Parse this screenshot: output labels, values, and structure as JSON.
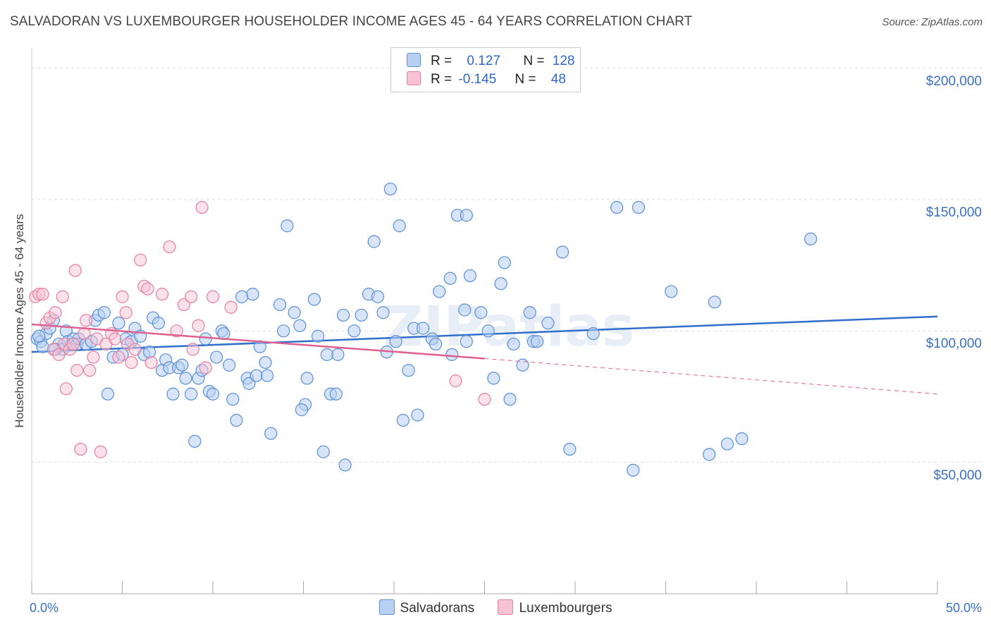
{
  "title": "SALVADORAN VS LUXEMBOURGER HOUSEHOLDER INCOME AGES 45 - 64 YEARS CORRELATION CHART",
  "source": "Source: ZipAtlas.com",
  "watermark": "ZIPatlas",
  "colors": {
    "blue": "#5b8fd6",
    "blue_fill": "#b8d0f2",
    "blue_line": "#2f6fcb",
    "pink": "#e67fa3",
    "pink_fill": "#f7c3d4",
    "pink_line": "#e0608f",
    "axis_text": "#3a6fc4"
  },
  "legend": {
    "rows": [
      {
        "r_label": "R = ",
        "r_value": "0.127",
        "n_label": "N = ",
        "n_value": "128"
      },
      {
        "r_label": "R = ",
        "r_value": "-0.145",
        "n_label": "N = ",
        "n_value": "48"
      }
    ]
  },
  "bottom_legend": [
    "Salvadorans",
    "Luxembourgers"
  ],
  "chart_data": {
    "type": "scatter",
    "title": "SALVADORAN VS LUXEMBOURGER HOUSEHOLDER INCOME AGES 45 - 64 YEARS CORRELATION CHART",
    "xlabel": "",
    "ylabel": "Householder Income Ages 45 - 64 years",
    "xlim": [
      0,
      50
    ],
    "ylim": [
      0,
      205000
    ],
    "x_tick_labels": [
      "0.0%",
      "50.0%"
    ],
    "y_ticks": [
      50000,
      100000,
      150000,
      200000
    ],
    "y_tick_labels": [
      "$50,000",
      "$100,000",
      "$150,000",
      "$200,000"
    ],
    "grid": true,
    "legend_position": "top-center",
    "series": [
      {
        "name": "Salvadorans",
        "color": "#5b8fd6",
        "r": 0.127,
        "n": 128,
        "trend": {
          "x": [
            0,
            50
          ],
          "y": [
            92000,
            105500
          ]
        },
        "points": [
          [
            0.3,
            97000
          ],
          [
            0.5,
            96000
          ],
          [
            0.6,
            94000
          ],
          [
            0.8,
            99000
          ],
          [
            1.0,
            101000
          ],
          [
            1.2,
            104000
          ],
          [
            1.5,
            95000
          ],
          [
            1.7,
            93000
          ],
          [
            1.9,
            100000
          ],
          [
            2.0,
            96000
          ],
          [
            2.2,
            95000
          ],
          [
            2.3,
            97000
          ],
          [
            2.5,
            95000
          ],
          [
            2.6,
            97000
          ],
          [
            3.0,
            95000
          ],
          [
            3.3,
            96000
          ],
          [
            3.5,
            104000
          ],
          [
            3.7,
            106000
          ],
          [
            4.0,
            107000
          ],
          [
            4.2,
            76000
          ],
          [
            4.5,
            90000
          ],
          [
            4.8,
            103000
          ],
          [
            5.0,
            91000
          ],
          [
            5.2,
            97000
          ],
          [
            5.5,
            96000
          ],
          [
            5.7,
            101000
          ],
          [
            6.0,
            98000
          ],
          [
            6.2,
            91000
          ],
          [
            6.5,
            92000
          ],
          [
            6.7,
            105000
          ],
          [
            7.0,
            103000
          ],
          [
            7.2,
            85000
          ],
          [
            7.4,
            89000
          ],
          [
            7.6,
            86000
          ],
          [
            7.8,
            76000
          ],
          [
            8.1,
            86000
          ],
          [
            8.3,
            87000
          ],
          [
            8.5,
            82000
          ],
          [
            8.8,
            76000
          ],
          [
            9.0,
            58000
          ],
          [
            9.2,
            82000
          ],
          [
            9.4,
            85000
          ],
          [
            9.6,
            97000
          ],
          [
            9.8,
            77000
          ],
          [
            10.0,
            76000
          ],
          [
            10.2,
            90000
          ],
          [
            10.5,
            100000
          ],
          [
            10.6,
            99000
          ],
          [
            10.9,
            87000
          ],
          [
            11.1,
            74000
          ],
          [
            11.3,
            66000
          ],
          [
            11.6,
            113000
          ],
          [
            11.9,
            82000
          ],
          [
            12.0,
            80000
          ],
          [
            12.2,
            114000
          ],
          [
            12.4,
            83000
          ],
          [
            12.6,
            94000
          ],
          [
            12.9,
            88000
          ],
          [
            13.0,
            83000
          ],
          [
            13.2,
            61000
          ],
          [
            13.7,
            110000
          ],
          [
            13.9,
            100000
          ],
          [
            14.1,
            140000
          ],
          [
            14.5,
            107000
          ],
          [
            14.8,
            102000
          ],
          [
            15.1,
            72000
          ],
          [
            15.2,
            82000
          ],
          [
            14.9,
            70000
          ],
          [
            15.6,
            112000
          ],
          [
            15.8,
            98000
          ],
          [
            16.1,
            54000
          ],
          [
            16.3,
            91000
          ],
          [
            16.5,
            76000
          ],
          [
            16.8,
            76000
          ],
          [
            16.9,
            91000
          ],
          [
            17.2,
            106000
          ],
          [
            17.3,
            49000
          ],
          [
            17.8,
            100000
          ],
          [
            18.2,
            106000
          ],
          [
            18.6,
            114000
          ],
          [
            18.9,
            134000
          ],
          [
            19.1,
            113000
          ],
          [
            19.4,
            107000
          ],
          [
            19.6,
            92000
          ],
          [
            19.8,
            154000
          ],
          [
            20.1,
            96000
          ],
          [
            20.3,
            140000
          ],
          [
            20.5,
            66000
          ],
          [
            20.8,
            85000
          ],
          [
            21.1,
            101000
          ],
          [
            21.3,
            68000
          ],
          [
            21.6,
            101000
          ],
          [
            22.1,
            97000
          ],
          [
            22.3,
            95000
          ],
          [
            22.5,
            115000
          ],
          [
            23.1,
            120000
          ],
          [
            23.2,
            91000
          ],
          [
            23.5,
            144000
          ],
          [
            23.9,
            108000
          ],
          [
            24.0,
            144000
          ],
          [
            24.2,
            121000
          ],
          [
            24.0,
            96000
          ],
          [
            24.8,
            107000
          ],
          [
            25.2,
            100000
          ],
          [
            25.5,
            82000
          ],
          [
            25.9,
            118000
          ],
          [
            26.1,
            126000
          ],
          [
            26.4,
            74000
          ],
          [
            26.6,
            95000
          ],
          [
            27.1,
            87000
          ],
          [
            27.5,
            107000
          ],
          [
            27.7,
            96000
          ],
          [
            27.9,
            96000
          ],
          [
            28.5,
            103000
          ],
          [
            29.3,
            130000
          ],
          [
            29.7,
            55000
          ],
          [
            31.0,
            99000
          ],
          [
            32.3,
            147000
          ],
          [
            33.2,
            47000
          ],
          [
            33.5,
            147000
          ],
          [
            35.3,
            115000
          ],
          [
            37.4,
            53000
          ],
          [
            37.7,
            111000
          ],
          [
            38.4,
            57000
          ],
          [
            39.2,
            59000
          ],
          [
            43.0,
            135000
          ],
          [
            0.4,
            98000
          ],
          [
            1.3,
            93000
          ]
        ]
      },
      {
        "name": "Luxembourgers",
        "color": "#e67fa3",
        "r": -0.145,
        "n": 48,
        "trend": {
          "x": [
            0,
            25
          ],
          "y": [
            102500,
            89500
          ]
        },
        "trend_extension": {
          "x": [
            25,
            50
          ],
          "y": [
            89500,
            76000
          ]
        },
        "points": [
          [
            0.2,
            113000
          ],
          [
            0.4,
            114000
          ],
          [
            0.6,
            114000
          ],
          [
            0.8,
            103000
          ],
          [
            1.0,
            105000
          ],
          [
            1.2,
            93000
          ],
          [
            1.3,
            107000
          ],
          [
            1.5,
            91000
          ],
          [
            1.7,
            113000
          ],
          [
            1.8,
            95000
          ],
          [
            1.9,
            78000
          ],
          [
            2.1,
            93000
          ],
          [
            2.3,
            95000
          ],
          [
            2.4,
            123000
          ],
          [
            2.5,
            85000
          ],
          [
            2.7,
            55000
          ],
          [
            2.9,
            99000
          ],
          [
            3.0,
            104000
          ],
          [
            3.2,
            85000
          ],
          [
            3.4,
            90000
          ],
          [
            3.6,
            97000
          ],
          [
            3.8,
            54000
          ],
          [
            4.1,
            95000
          ],
          [
            4.4,
            99000
          ],
          [
            4.6,
            97000
          ],
          [
            4.8,
            90000
          ],
          [
            5.0,
            113000
          ],
          [
            5.2,
            107000
          ],
          [
            5.3,
            95000
          ],
          [
            5.5,
            88000
          ],
          [
            5.7,
            93000
          ],
          [
            6.0,
            127000
          ],
          [
            6.2,
            117000
          ],
          [
            6.4,
            116000
          ],
          [
            6.6,
            88000
          ],
          [
            7.2,
            114000
          ],
          [
            7.6,
            132000
          ],
          [
            8.0,
            100000
          ],
          [
            8.4,
            110000
          ],
          [
            8.8,
            113000
          ],
          [
            8.9,
            93000
          ],
          [
            9.2,
            102000
          ],
          [
            9.4,
            147000
          ],
          [
            9.6,
            86000
          ],
          [
            10.0,
            113000
          ],
          [
            11.0,
            109000
          ],
          [
            23.4,
            81000
          ],
          [
            25.0,
            74000
          ]
        ]
      }
    ]
  }
}
